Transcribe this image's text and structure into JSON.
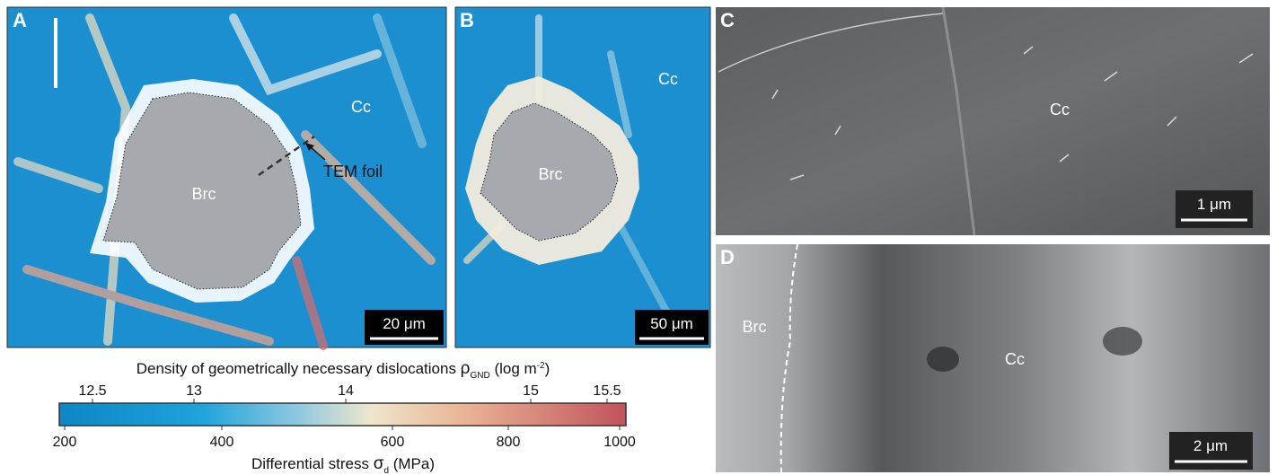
{
  "panels": [
    {
      "label": "A",
      "phases": [
        "Brc",
        "Cc"
      ],
      "annotation": "TEM foil",
      "scale_bar": "20 μm"
    },
    {
      "label": "B",
      "phases": [
        "Brc",
        "Cc"
      ],
      "scale_bar": "50 μm"
    },
    {
      "label": "C",
      "phases": [
        "Cc"
      ],
      "scale_bar": "1 μm"
    },
    {
      "label": "D",
      "phases": [
        "Brc",
        "Cc"
      ],
      "scale_bar": "2 μm"
    }
  ],
  "colorbar": {
    "title": {
      "text": "Density of geometrically necessary dislocations ",
      "symbol": "ρ",
      "subscript": "GND",
      "unit_start": " (log m",
      "superscript": "-2",
      "unit_end": ")"
    },
    "top_ticks": [
      "12.5",
      "13",
      "14",
      "15",
      "15.5"
    ],
    "bottom_ticks": [
      "200",
      "400",
      "600",
      "800",
      "1000"
    ],
    "label": {
      "text": "Differential stress  ",
      "symbol": "σ",
      "subscript": "d",
      "unit": " (MPa)"
    }
  }
}
